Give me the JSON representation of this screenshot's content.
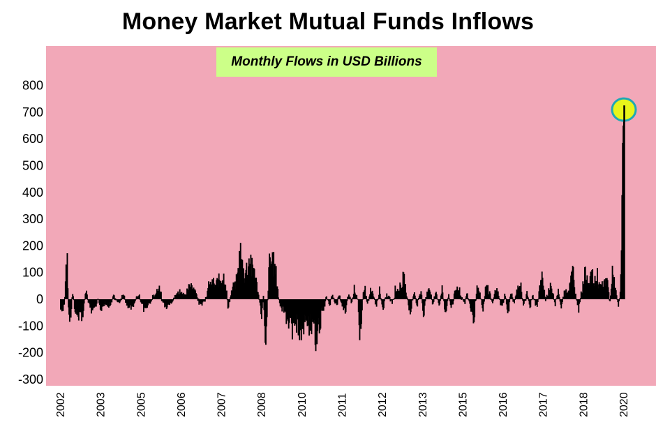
{
  "title": "Money Market Mutual Funds Inflows",
  "colors": {
    "plot_background": "#f2a8b8",
    "bars": "#000000",
    "subtitle_box": "#ccff88",
    "highlight_fill": "#e8f51a",
    "highlight_stroke": "#1fa8b5"
  },
  "chart_data": {
    "type": "bar",
    "title": "Money Market Mutual Funds Inflows",
    "subtitle": "Monthly Flows in USD Billions",
    "xlabel": "",
    "ylabel": "",
    "ylim": [
      -300,
      800
    ],
    "yticks": [
      "800",
      "700",
      "600",
      "500",
      "400",
      "300",
      "200",
      "100",
      "0",
      "-100",
      "-200",
      "-300"
    ],
    "xticks": [
      "2002",
      "2003",
      "2005",
      "2006",
      "2007",
      "2008",
      "2010",
      "2011",
      "2012",
      "2013",
      "2015",
      "2016",
      "2017",
      "2018",
      "2020"
    ],
    "grid": false,
    "legend": "none",
    "highlight": {
      "period": "2020",
      "value": 715
    },
    "note": "weekly flow estimates read off the chart; values are approximate",
    "anchors": [
      [
        2002.0,
        -40
      ],
      [
        2002.05,
        -50
      ],
      [
        2002.1,
        -30
      ],
      [
        2002.14,
        20
      ],
      [
        2002.18,
        145
      ],
      [
        2002.22,
        110
      ],
      [
        2002.26,
        -60
      ],
      [
        2002.32,
        -80
      ],
      [
        2002.38,
        30
      ],
      [
        2002.45,
        -40
      ],
      [
        2002.55,
        -60
      ],
      [
        2002.62,
        -45
      ],
      [
        2002.7,
        -70
      ],
      [
        2002.8,
        40
      ],
      [
        2002.9,
        -20
      ],
      [
        2003.0,
        -40
      ],
      [
        2003.1,
        -30
      ],
      [
        2003.2,
        10
      ],
      [
        2003.3,
        -45
      ],
      [
        2003.4,
        -20
      ],
      [
        2003.55,
        -30
      ],
      [
        2003.7,
        10
      ],
      [
        2003.85,
        -15
      ],
      [
        2004.0,
        20
      ],
      [
        2004.15,
        -30
      ],
      [
        2004.3,
        -20
      ],
      [
        2004.5,
        15
      ],
      [
        2004.65,
        -35
      ],
      [
        2004.8,
        -25
      ],
      [
        2004.95,
        10
      ],
      [
        2005.05,
        25
      ],
      [
        2005.15,
        55
      ],
      [
        2005.25,
        -10
      ],
      [
        2005.4,
        -30
      ],
      [
        2005.55,
        -15
      ],
      [
        2005.7,
        20
      ],
      [
        2005.85,
        30
      ],
      [
        2006.0,
        15
      ],
      [
        2006.1,
        40
      ],
      [
        2006.2,
        60
      ],
      [
        2006.3,
        35
      ],
      [
        2006.45,
        -20
      ],
      [
        2006.6,
        -10
      ],
      [
        2006.75,
        50
      ],
      [
        2006.85,
        60
      ],
      [
        2006.95,
        45
      ],
      [
        2007.05,
        70
      ],
      [
        2007.15,
        90
      ],
      [
        2007.25,
        85
      ],
      [
        2007.35,
        -30
      ],
      [
        2007.5,
        40
      ],
      [
        2007.62,
        60
      ],
      [
        2007.68,
        100
      ],
      [
        2007.73,
        175
      ],
      [
        2007.78,
        140
      ],
      [
        2007.84,
        110
      ],
      [
        2007.9,
        95
      ],
      [
        2007.96,
        120
      ],
      [
        2008.02,
        150
      ],
      [
        2008.06,
        155
      ],
      [
        2008.1,
        120
      ],
      [
        2008.15,
        100
      ],
      [
        2008.2,
        115
      ],
      [
        2008.25,
        60
      ],
      [
        2008.3,
        30
      ],
      [
        2008.36,
        -20
      ],
      [
        2008.42,
        -60
      ],
      [
        2008.48,
        10
      ],
      [
        2008.55,
        -150
      ],
      [
        2008.6,
        -40
      ],
      [
        2008.68,
        150
      ],
      [
        2008.72,
        135
      ],
      [
        2008.78,
        140
      ],
      [
        2008.85,
        110
      ],
      [
        2008.92,
        60
      ],
      [
        2009.0,
        -20
      ],
      [
        2009.1,
        -40
      ],
      [
        2009.2,
        -60
      ],
      [
        2009.3,
        -80
      ],
      [
        2009.4,
        -100
      ],
      [
        2009.5,
        -90
      ],
      [
        2009.6,
        -110
      ],
      [
        2009.7,
        -120
      ],
      [
        2009.8,
        -90
      ],
      [
        2009.9,
        -80
      ],
      [
        2010.0,
        -100
      ],
      [
        2010.08,
        -130
      ],
      [
        2010.15,
        -140
      ],
      [
        2010.22,
        -100
      ],
      [
        2010.3,
        -80
      ],
      [
        2010.4,
        -40
      ],
      [
        2010.5,
        10
      ],
      [
        2010.6,
        -20
      ],
      [
        2010.7,
        25
      ],
      [
        2010.8,
        -30
      ],
      [
        2010.9,
        15
      ],
      [
        2011.0,
        -20
      ],
      [
        2011.1,
        -40
      ],
      [
        2011.2,
        20
      ],
      [
        2011.3,
        -10
      ],
      [
        2011.4,
        50
      ],
      [
        2011.5,
        -10
      ],
      [
        2011.55,
        -110
      ],
      [
        2011.62,
        -60
      ],
      [
        2011.7,
        70
      ],
      [
        2011.8,
        -20
      ],
      [
        2011.9,
        30
      ],
      [
        2012.0,
        15
      ],
      [
        2012.1,
        -30
      ],
      [
        2012.2,
        40
      ],
      [
        2012.3,
        -40
      ],
      [
        2012.4,
        15
      ],
      [
        2012.5,
        10
      ],
      [
        2012.6,
        -20
      ],
      [
        2012.7,
        40
      ],
      [
        2012.8,
        30
      ],
      [
        2012.9,
        70
      ],
      [
        2013.0,
        65
      ],
      [
        2013.1,
        -20
      ],
      [
        2013.2,
        -40
      ],
      [
        2013.3,
        35
      ],
      [
        2013.4,
        -30
      ],
      [
        2013.5,
        45
      ],
      [
        2013.6,
        -50
      ],
      [
        2013.7,
        30
      ],
      [
        2013.8,
        45
      ],
      [
        2013.9,
        -20
      ],
      [
        2014.0,
        30
      ],
      [
        2014.1,
        -30
      ],
      [
        2014.2,
        40
      ],
      [
        2014.3,
        -60
      ],
      [
        2014.4,
        20
      ],
      [
        2014.5,
        -40
      ],
      [
        2014.6,
        30
      ],
      [
        2014.7,
        50
      ],
      [
        2014.8,
        10
      ],
      [
        2014.9,
        -20
      ],
      [
        2015.0,
        25
      ],
      [
        2015.1,
        -30
      ],
      [
        2015.2,
        -80
      ],
      [
        2015.3,
        40
      ],
      [
        2015.4,
        20
      ],
      [
        2015.5,
        -40
      ],
      [
        2015.6,
        50
      ],
      [
        2015.7,
        30
      ],
      [
        2015.8,
        -20
      ],
      [
        2015.9,
        40
      ],
      [
        2016.0,
        10
      ],
      [
        2016.1,
        -30
      ],
      [
        2016.2,
        20
      ],
      [
        2016.3,
        -50
      ],
      [
        2016.4,
        30
      ],
      [
        2016.5,
        -20
      ],
      [
        2016.6,
        40
      ],
      [
        2016.7,
        50
      ],
      [
        2016.8,
        -30
      ],
      [
        2016.9,
        20
      ],
      [
        2017.0,
        -30
      ],
      [
        2017.1,
        20
      ],
      [
        2017.2,
        -40
      ],
      [
        2017.3,
        30
      ],
      [
        2017.4,
        90
      ],
      [
        2017.5,
        -10
      ],
      [
        2017.6,
        40
      ],
      [
        2017.7,
        50
      ],
      [
        2017.8,
        -20
      ],
      [
        2017.9,
        30
      ],
      [
        2018.0,
        -30
      ],
      [
        2018.1,
        40
      ],
      [
        2018.2,
        20
      ],
      [
        2018.3,
        60
      ],
      [
        2018.38,
        110
      ],
      [
        2018.45,
        20
      ],
      [
        2018.55,
        -40
      ],
      [
        2018.65,
        30
      ],
      [
        2018.72,
        80
      ],
      [
        2018.8,
        95
      ],
      [
        2018.88,
        70
      ],
      [
        2018.95,
        90
      ],
      [
        2019.05,
        60
      ],
      [
        2019.15,
        85
      ],
      [
        2019.25,
        50
      ],
      [
        2019.35,
        40
      ],
      [
        2019.45,
        95
      ],
      [
        2019.55,
        -10
      ],
      [
        2019.65,
        100
      ],
      [
        2019.75,
        20
      ],
      [
        2019.82,
        -20
      ],
      [
        2019.88,
        10
      ],
      [
        2019.92,
        150
      ],
      [
        2019.96,
        580
      ],
      [
        2020.0,
        715
      ]
    ]
  }
}
